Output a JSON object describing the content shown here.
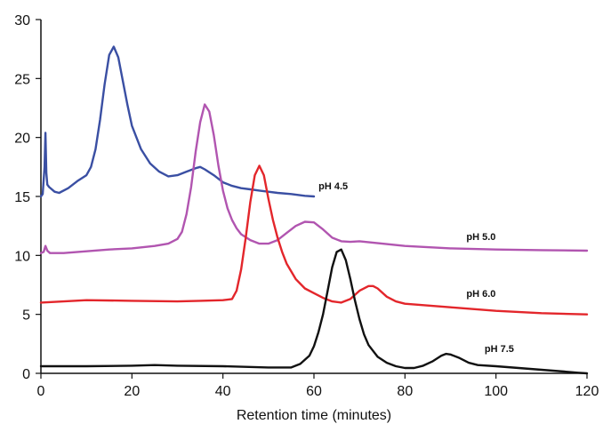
{
  "chart_data": {
    "type": "line",
    "title": "",
    "xlabel": "Retention time (minutes)",
    "ylabel": "",
    "xlim": [
      0,
      120
    ],
    "ylim": [
      0,
      30
    ],
    "x_ticks": [
      0,
      20,
      40,
      60,
      80,
      100,
      120
    ],
    "y_ticks": [
      0,
      5,
      10,
      15,
      20,
      25,
      30
    ],
    "grid": false,
    "legend": "labels placed next to each curve",
    "series": [
      {
        "name": "pH 4.5",
        "color": "#3a4fa3",
        "x": [
          0,
          0.4,
          0.8,
          1.0,
          1.2,
          1.4,
          1.8,
          3,
          4,
          6,
          8,
          10,
          11,
          12,
          13,
          14,
          15,
          16,
          17,
          18,
          19,
          20,
          22,
          24,
          26,
          28,
          30,
          32,
          34,
          35,
          36,
          38,
          40,
          42,
          44,
          46,
          48,
          50,
          52,
          55,
          58,
          60
        ],
        "y": [
          15.0,
          15.2,
          17.5,
          20.4,
          17.0,
          16.0,
          15.8,
          15.4,
          15.3,
          15.7,
          16.3,
          16.8,
          17.5,
          19.0,
          21.5,
          24.5,
          27.0,
          27.7,
          26.8,
          24.8,
          22.8,
          21.0,
          19.0,
          17.8,
          17.1,
          16.7,
          16.8,
          17.1,
          17.4,
          17.5,
          17.3,
          16.8,
          16.2,
          15.9,
          15.7,
          15.6,
          15.5,
          15.4,
          15.3,
          15.2,
          15.05,
          15.0
        ]
      },
      {
        "name": "pH 5.0",
        "color": "#b155b0",
        "x": [
          0,
          0.6,
          1.0,
          1.4,
          2,
          5,
          10,
          15,
          20,
          25,
          28,
          30,
          31,
          32,
          33,
          34,
          35,
          36,
          37,
          38,
          39,
          40,
          41,
          42,
          43,
          44,
          46,
          48,
          50,
          52,
          54,
          56,
          58,
          60,
          62,
          64,
          66,
          68,
          70,
          75,
          80,
          90,
          100,
          110,
          120
        ],
        "y": [
          10.2,
          10.3,
          10.8,
          10.4,
          10.2,
          10.2,
          10.35,
          10.5,
          10.6,
          10.8,
          11.0,
          11.4,
          12.0,
          13.5,
          15.8,
          18.8,
          21.3,
          22.8,
          22.2,
          20.2,
          17.6,
          15.5,
          14.0,
          13.0,
          12.3,
          11.8,
          11.3,
          11.0,
          11.0,
          11.3,
          11.9,
          12.5,
          12.85,
          12.8,
          12.2,
          11.5,
          11.2,
          11.15,
          11.2,
          11.0,
          10.8,
          10.6,
          10.5,
          10.45,
          10.4
        ]
      },
      {
        "name": "pH 6.0",
        "color": "#e3262b",
        "x": [
          0,
          5,
          10,
          20,
          30,
          35,
          40,
          42,
          43,
          44,
          45,
          46,
          47,
          48,
          49,
          50,
          51,
          52,
          53,
          54,
          56,
          58,
          60,
          62,
          64,
          66,
          68,
          70,
          72,
          73,
          74,
          76,
          78,
          80,
          90,
          100,
          110,
          120
        ],
        "y": [
          6.0,
          6.1,
          6.2,
          6.15,
          6.1,
          6.15,
          6.2,
          6.3,
          7.0,
          8.8,
          11.5,
          14.5,
          16.8,
          17.6,
          16.8,
          14.8,
          13.0,
          11.5,
          10.3,
          9.3,
          8.0,
          7.2,
          6.8,
          6.4,
          6.1,
          6.0,
          6.3,
          7.0,
          7.4,
          7.4,
          7.2,
          6.5,
          6.1,
          5.9,
          5.6,
          5.3,
          5.1,
          5.0
        ]
      },
      {
        "name": "pH 7.5",
        "color": "#111111",
        "x": [
          0,
          10,
          20,
          25,
          30,
          40,
          50,
          55,
          57,
          59,
          60,
          61,
          62,
          63,
          64,
          65,
          66,
          67,
          68,
          69,
          70,
          71,
          72,
          74,
          76,
          78,
          80,
          82,
          84,
          86,
          88,
          89,
          90,
          92,
          94,
          96,
          100,
          105,
          110,
          115,
          118,
          120
        ],
        "y": [
          0.6,
          0.6,
          0.65,
          0.7,
          0.65,
          0.6,
          0.5,
          0.5,
          0.8,
          1.5,
          2.3,
          3.5,
          5.0,
          7.0,
          9.0,
          10.3,
          10.5,
          9.6,
          8.0,
          6.2,
          4.6,
          3.3,
          2.4,
          1.4,
          0.9,
          0.6,
          0.45,
          0.45,
          0.65,
          1.0,
          1.5,
          1.65,
          1.6,
          1.3,
          0.9,
          0.7,
          0.6,
          0.45,
          0.3,
          0.15,
          0.05,
          0.0
        ]
      }
    ],
    "annotations": [
      {
        "text": "pH 4.5",
        "series": "pH 4.5",
        "x": 61,
        "y": 15.6
      },
      {
        "text": "pH 5.0",
        "series": "pH 5.0",
        "x": 93.5,
        "y": 11.3
      },
      {
        "text": "pH 6.0",
        "series": "pH 6.0",
        "x": 93.5,
        "y": 6.5
      },
      {
        "text": "pH 7.5",
        "series": "pH 7.5",
        "x": 97.5,
        "y": 1.8
      }
    ]
  }
}
